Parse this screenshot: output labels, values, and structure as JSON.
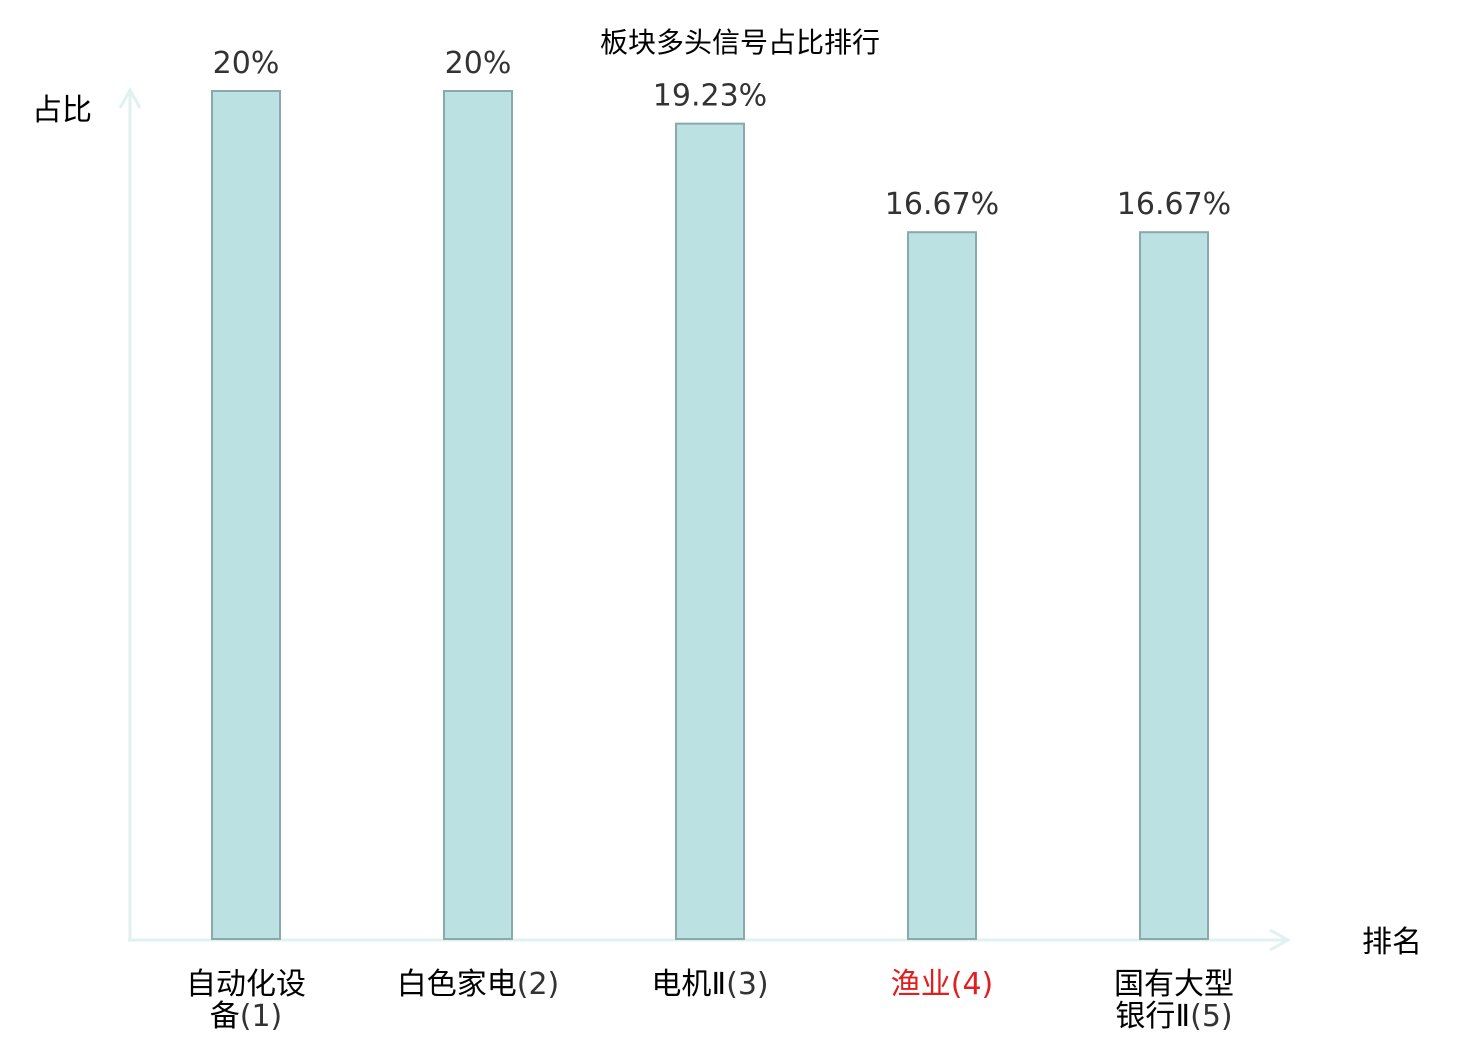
{
  "chart_data": {
    "type": "bar",
    "title": "板块多头信号占比排行",
    "ylabel": "占比",
    "xlabel": "排名",
    "ylim": [
      0,
      20
    ],
    "grid": false,
    "categories": [
      {
        "lines": [
          "自动化设",
          "备"
        ],
        "rank": "(1)"
      },
      {
        "lines": [
          "白色家电"
        ],
        "rank": "(2)"
      },
      {
        "lines": [
          "电机Ⅱ"
        ],
        "rank": "(3)"
      },
      {
        "lines": [
          "渔业"
        ],
        "rank": "(4)",
        "highlight": true
      },
      {
        "lines": [
          "国有大型",
          "银行Ⅱ"
        ],
        "rank": "(5)"
      }
    ],
    "values": [
      20,
      20,
      19.23,
      16.67,
      16.67
    ],
    "value_labels": [
      "20%",
      "20%",
      "19.23%",
      "16.67%",
      "16.67%"
    ]
  },
  "colors": {
    "bar_fill": "#bce1e2",
    "bar_stroke": "#8aa9aa",
    "axis": "#dff2ef",
    "highlight": "#e02020"
  }
}
